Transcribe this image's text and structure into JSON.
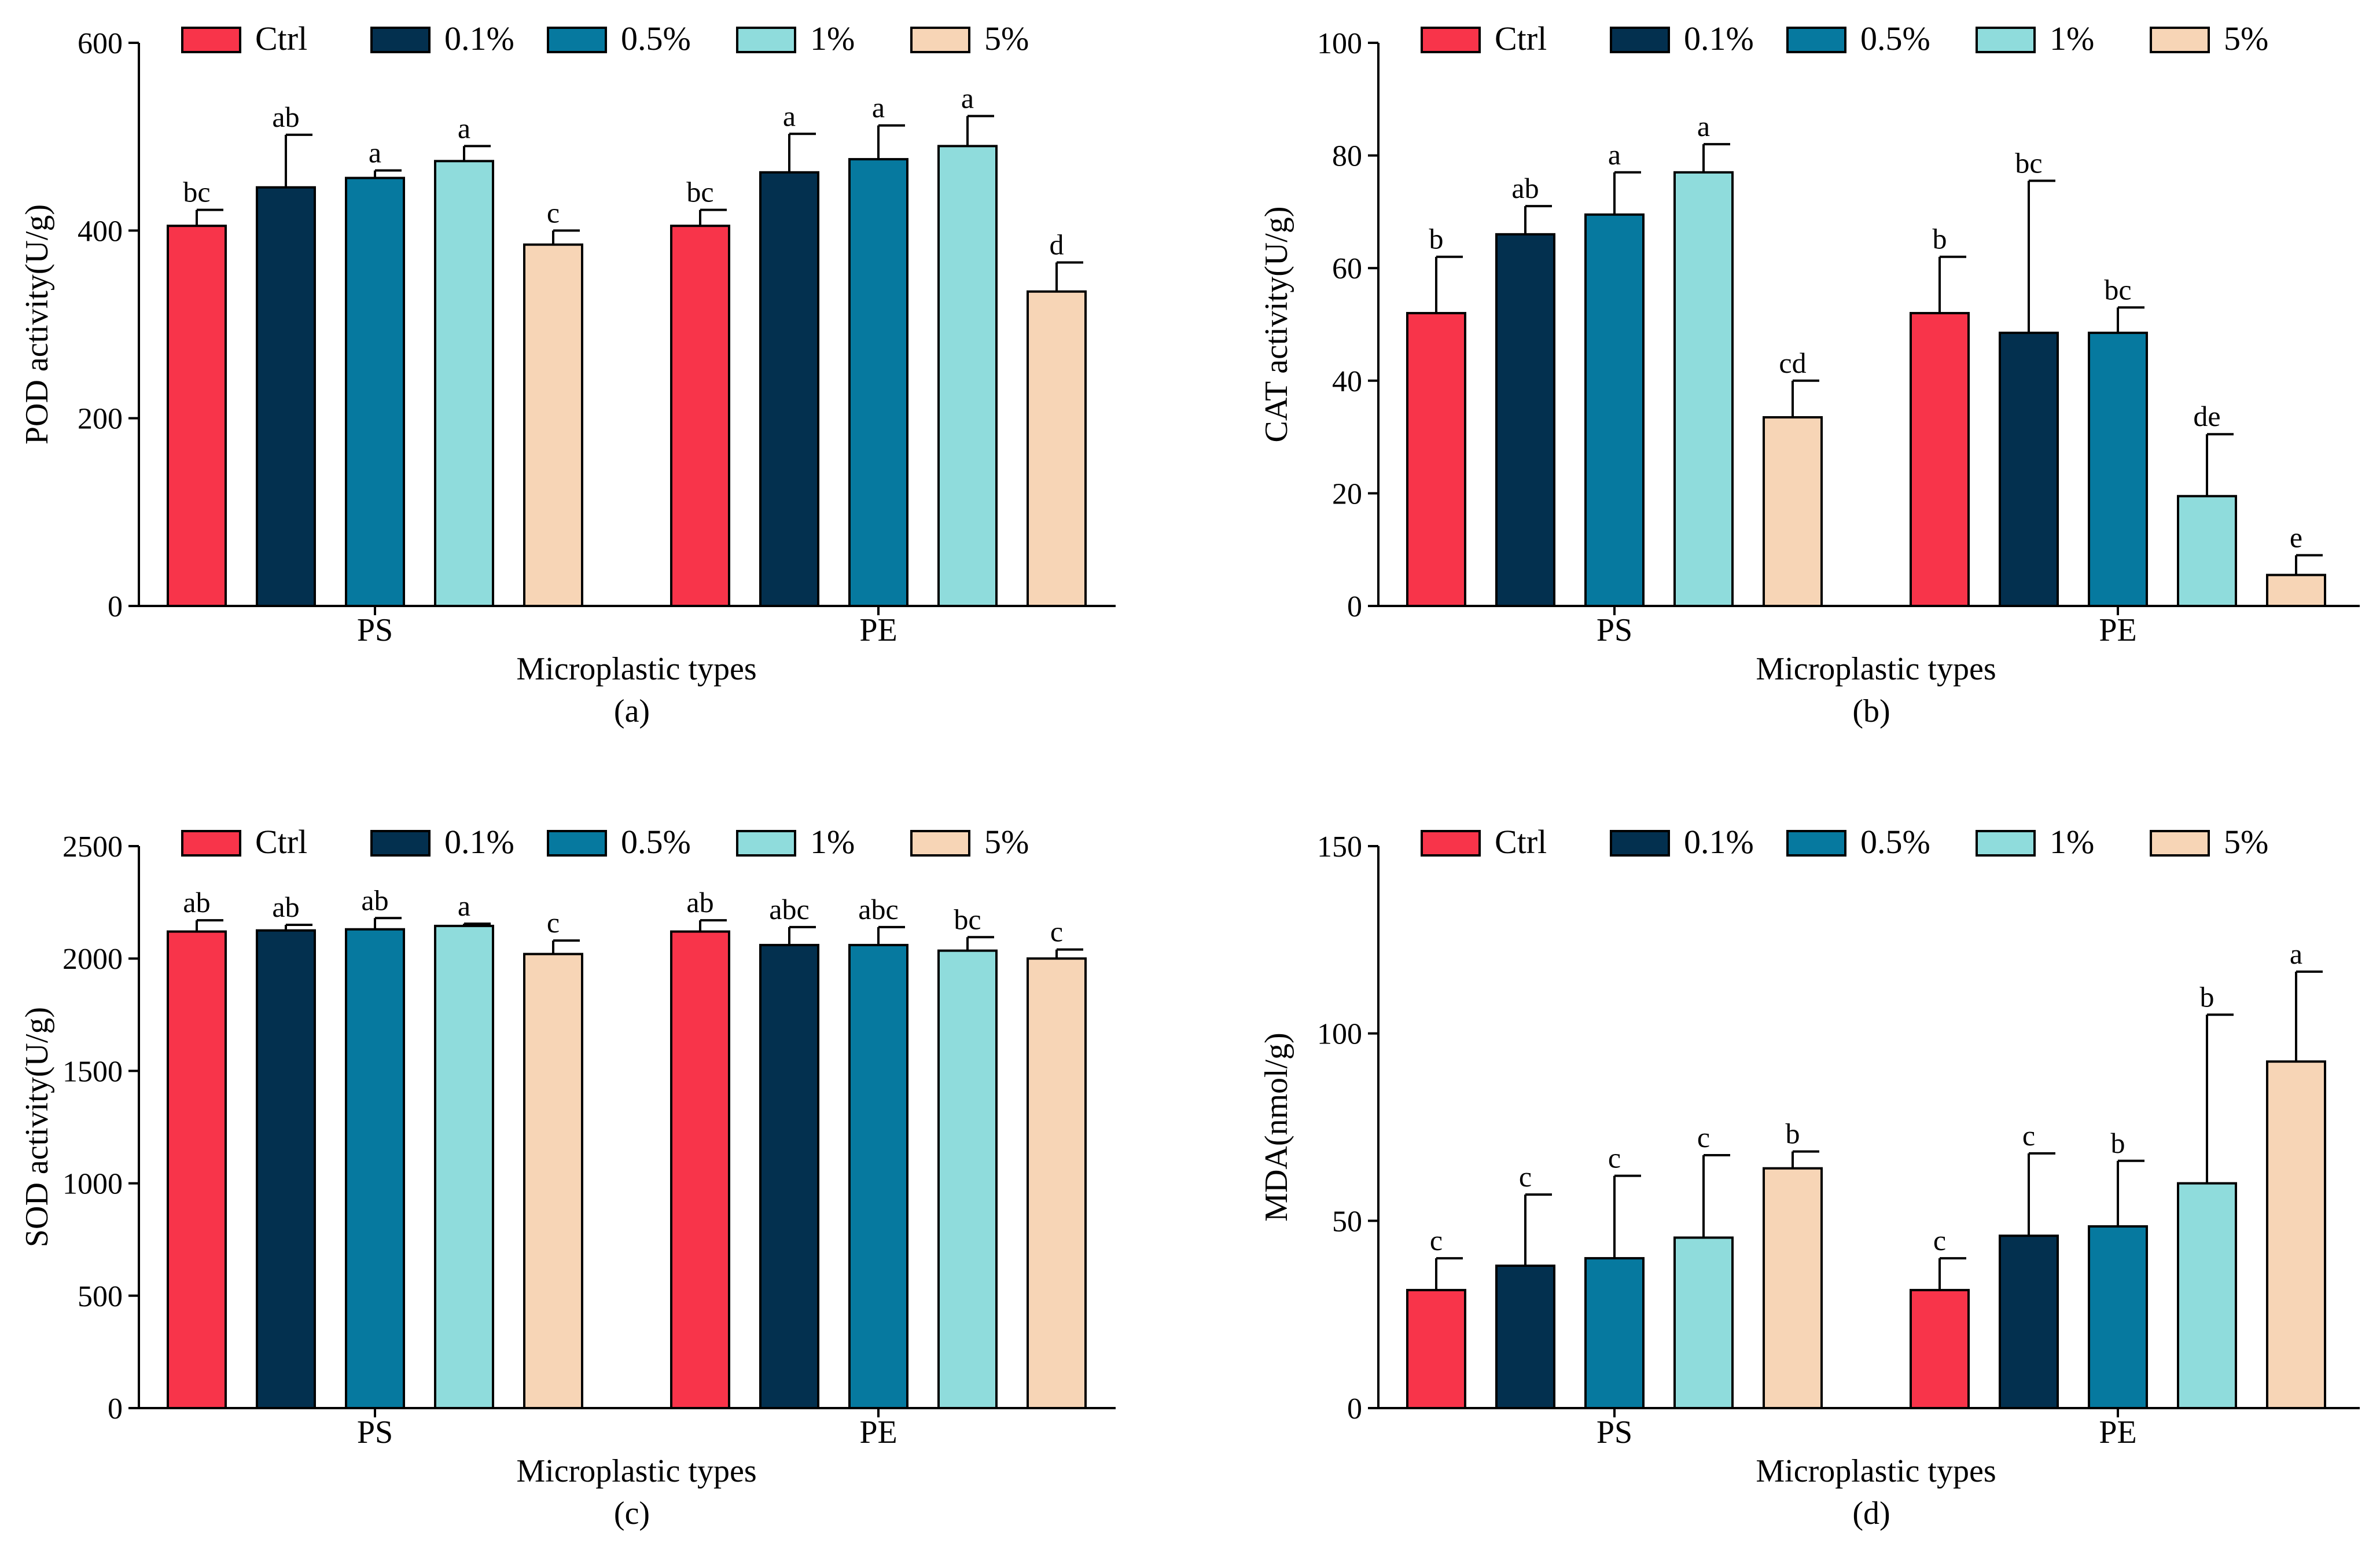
{
  "colors": {
    "Ctrl": "#f8344a",
    "0.1%": "#03304f",
    "0.5%": "#06799f",
    "1%": "#8fdcdc",
    "5%": "#f7d5b6",
    "stroke": "#000000"
  },
  "chart_data": [
    {
      "type": "bar",
      "title": "",
      "caption": "(a)",
      "xlabel": "Microplastic types",
      "ylabel": "POD activity(U/g)",
      "ylim": [
        0,
        600
      ],
      "yticks": [
        0,
        200,
        400,
        600
      ],
      "categories": [
        "PS",
        "PE"
      ],
      "legend": [
        "Ctrl",
        "0.1%",
        "0.5%",
        "1%",
        "5%"
      ],
      "series": [
        {
          "name": "Ctrl",
          "values": [
            405,
            405
          ],
          "errors": [
            17,
            17
          ],
          "letters": [
            "bc",
            "bc"
          ]
        },
        {
          "name": "0.1%",
          "values": [
            446,
            462
          ],
          "errors": [
            56,
            41
          ],
          "letters": [
            "ab",
            "a"
          ]
        },
        {
          "name": "0.5%",
          "values": [
            456,
            476
          ],
          "errors": [
            8,
            36
          ],
          "letters": [
            "a",
            "a"
          ]
        },
        {
          "name": "1%",
          "values": [
            474,
            490
          ],
          "errors": [
            16,
            32
          ],
          "letters": [
            "a",
            "a"
          ]
        },
        {
          "name": "5%",
          "values": [
            385,
            335
          ],
          "errors": [
            15,
            31
          ],
          "letters": [
            "c",
            "d"
          ]
        }
      ]
    },
    {
      "type": "bar",
      "title": "",
      "caption": "(b)",
      "xlabel": "Microplastic types",
      "ylabel": "CAT activity(U/g)",
      "ylim": [
        0,
        100
      ],
      "yticks": [
        0,
        20,
        40,
        60,
        80,
        100
      ],
      "categories": [
        "PS",
        "PE"
      ],
      "legend": [
        "Ctrl",
        "0.1%",
        "0.5%",
        "1%",
        "5%"
      ],
      "series": [
        {
          "name": "Ctrl",
          "values": [
            52,
            52
          ],
          "errors": [
            10,
            10
          ],
          "letters": [
            "b",
            "b"
          ]
        },
        {
          "name": "0.1%",
          "values": [
            66,
            48.5
          ],
          "errors": [
            5,
            27
          ],
          "letters": [
            "ab",
            "bc"
          ]
        },
        {
          "name": "0.5%",
          "values": [
            69.5,
            48.5
          ],
          "errors": [
            7.5,
            4.5
          ],
          "letters": [
            "a",
            "bc"
          ]
        },
        {
          "name": "1%",
          "values": [
            77,
            19.5
          ],
          "errors": [
            5,
            11
          ],
          "letters": [
            "a",
            "de"
          ]
        },
        {
          "name": "5%",
          "values": [
            33.5,
            5.5
          ],
          "errors": [
            6.5,
            3.5
          ],
          "letters": [
            "cd",
            "e"
          ]
        }
      ]
    },
    {
      "type": "bar",
      "title": "",
      "caption": "(c)",
      "xlabel": "Microplastic types",
      "ylabel": "SOD activity(U/g)",
      "ylim": [
        0,
        2500
      ],
      "yticks": [
        0,
        500,
        1000,
        1500,
        2000,
        2500
      ],
      "categories": [
        "PS",
        "PE"
      ],
      "legend": [
        "Ctrl",
        "0.1%",
        "0.5%",
        "1%",
        "5%"
      ],
      "series": [
        {
          "name": "Ctrl",
          "values": [
            2120,
            2120
          ],
          "errors": [
            50,
            50
          ],
          "letters": [
            "ab",
            "ab"
          ]
        },
        {
          "name": "0.1%",
          "values": [
            2125,
            2060
          ],
          "errors": [
            25,
            80
          ],
          "letters": [
            "ab",
            "abc"
          ]
        },
        {
          "name": "0.5%",
          "values": [
            2130,
            2060
          ],
          "errors": [
            50,
            80
          ],
          "letters": [
            "ab",
            "abc"
          ]
        },
        {
          "name": "1%",
          "values": [
            2145,
            2035
          ],
          "errors": [
            10,
            60
          ],
          "letters": [
            "a",
            "bc"
          ]
        },
        {
          "name": "5%",
          "values": [
            2020,
            2000
          ],
          "errors": [
            60,
            40
          ],
          "letters": [
            "c",
            "c"
          ]
        }
      ]
    },
    {
      "type": "bar",
      "title": "",
      "caption": "(d)",
      "xlabel": "Microplastic types",
      "ylabel": "MDA(nmol/g)",
      "ylim": [
        0,
        150
      ],
      "yticks": [
        0,
        50,
        100,
        150
      ],
      "categories": [
        "PS",
        "PE"
      ],
      "legend": [
        "Ctrl",
        "0.1%",
        "0.5%",
        "1%",
        "5%"
      ],
      "series": [
        {
          "name": "Ctrl",
          "values": [
            31.5,
            31.5
          ],
          "errors": [
            8.5,
            8.5
          ],
          "letters": [
            "c",
            "c"
          ]
        },
        {
          "name": "0.1%",
          "values": [
            38,
            46
          ],
          "errors": [
            19,
            22
          ],
          "letters": [
            "c",
            "c"
          ]
        },
        {
          "name": "0.5%",
          "values": [
            40,
            48.5
          ],
          "errors": [
            22,
            17.5
          ],
          "letters": [
            "c",
            "b"
          ]
        },
        {
          "name": "1%",
          "values": [
            45.5,
            60
          ],
          "errors": [
            22,
            45
          ],
          "letters": [
            "c",
            "b"
          ]
        },
        {
          "name": "5%",
          "values": [
            64,
            92.5
          ],
          "errors": [
            4.5,
            24
          ],
          "letters": [
            "b",
            "a"
          ]
        }
      ]
    }
  ]
}
